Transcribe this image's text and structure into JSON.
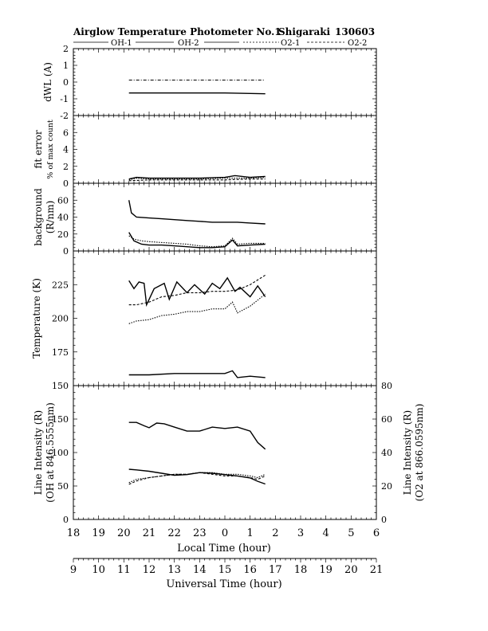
{
  "chart_data": {
    "type": "line",
    "title": "Airglow Temperature Photometer No.1",
    "site": "Shigaraki",
    "date_code": "130603",
    "legend": [
      "OH-1",
      "OH-2",
      "O2-1",
      "O2-2"
    ],
    "x_local": {
      "label": "Local Time (hour)",
      "range": [
        18,
        30
      ],
      "ticks": [
        "18",
        "19",
        "20",
        "21",
        "22",
        "23",
        "0",
        "1",
        "2",
        "3",
        "4",
        "5",
        "6"
      ]
    },
    "x_ut": {
      "label": "Universal Time (hour)",
      "range": [
        9,
        21
      ],
      "ticks": [
        "9",
        "10",
        "11",
        "12",
        "13",
        "14",
        "15",
        "16",
        "17",
        "18",
        "19",
        "20",
        "21"
      ]
    },
    "panels": [
      {
        "id": "dwl",
        "ylabel": "dWL (A)",
        "ylim": [
          -2,
          2
        ],
        "yticks": [
          "2",
          "1",
          "0",
          "-1",
          "-2"
        ],
        "series": [
          {
            "name": "OH-1",
            "style": "solid",
            "x": [
              20.2,
              21,
              22,
              23,
              24,
              25,
              25.6
            ],
            "y": [
              -0.65,
              -0.65,
              -0.65,
              -0.65,
              -0.65,
              -0.68,
              -0.7
            ]
          },
          {
            "name": "OH-2",
            "style": "dashdot",
            "x": [
              20.2,
              21,
              22,
              23,
              24,
              25,
              25.6
            ],
            "y": [
              0.12,
              0.12,
              0.12,
              0.12,
              0.12,
              0.12,
              0.12
            ]
          }
        ]
      },
      {
        "id": "fiterr",
        "ylabel": "fit error",
        "ylabel2": "% of max count",
        "ylim": [
          0,
          8
        ],
        "yticks": [
          "6",
          "4",
          "2",
          "0"
        ],
        "series": [
          {
            "name": "OH-1",
            "style": "solid",
            "x": [
              20.2,
              20.5,
              21,
              22,
              23,
              24,
              24.4,
              25,
              25.6
            ],
            "y": [
              0.5,
              0.7,
              0.6,
              0.6,
              0.6,
              0.7,
              0.9,
              0.7,
              0.8
            ]
          },
          {
            "name": "OH-2",
            "style": "dotted",
            "x": [
              20.2,
              20.5,
              21,
              22,
              23,
              24,
              25,
              25.6
            ],
            "y": [
              0.4,
              0.6,
              0.5,
              0.5,
              0.5,
              0.6,
              0.6,
              0.7
            ]
          },
          {
            "name": "O2-1",
            "style": "dashed",
            "x": [
              20.2,
              21,
              22,
              23,
              24,
              25,
              25.6
            ],
            "y": [
              0.3,
              0.4,
              0.4,
              0.4,
              0.4,
              0.5,
              0.5
            ]
          }
        ]
      },
      {
        "id": "background",
        "ylabel": "background",
        "ylabel2": "(R/nm)",
        "ylim": [
          0,
          80
        ],
        "yticks": [
          "60",
          "40",
          "20",
          "0"
        ],
        "series": [
          {
            "name": "OH-1",
            "style": "solid",
            "x": [
              20.2,
              20.3,
              20.5,
              21,
              21.5,
              22,
              22.5,
              23,
              23.5,
              24,
              24.5,
              25,
              25.6
            ],
            "y": [
              60,
              45,
              40,
              39,
              38,
              37,
              36,
              35,
              34,
              34,
              34,
              33,
              32
            ]
          },
          {
            "name": "OH-2",
            "style": "solid",
            "x": [
              20.2,
              20.4,
              20.7,
              21,
              21.5,
              22,
              22.5,
              23,
              23.5,
              24,
              24.3,
              24.5,
              25,
              25.6
            ],
            "y": [
              22,
              12,
              8,
              7,
              7,
              6,
              5,
              4,
              4,
              5,
              13,
              6,
              7,
              8
            ]
          },
          {
            "name": "O2-1",
            "style": "dotted",
            "x": [
              20.2,
              20.4,
              20.7,
              21,
              21.5,
              22,
              22.5,
              23,
              23.5,
              24,
              24.3,
              24.5,
              25,
              25.6
            ],
            "y": [
              18,
              14,
              12,
              11,
              10,
              9,
              8,
              6,
              5,
              6,
              15,
              8,
              9,
              9
            ]
          }
        ]
      },
      {
        "id": "temperature",
        "ylabel": "Temperature (K)",
        "ylim": [
          150,
          250
        ],
        "yticks": [
          "225",
          "200",
          "175",
          "150"
        ],
        "series": [
          {
            "name": "OH-1",
            "style": "solid",
            "x": [
              20.2,
              20.4,
              20.6,
              20.8,
              20.9,
              21.2,
              21.6,
              21.8,
              22.1,
              22.5,
              22.8,
              23.2,
              23.5,
              23.8,
              24.1,
              24.4,
              24.6,
              25,
              25.3,
              25.6
            ],
            "y": [
              228,
              222,
              227,
              226,
              210,
              222,
              226,
              214,
              227,
              219,
              225,
              218,
              226,
              222,
              230,
              220,
              223,
              216,
              224,
              216
            ]
          },
          {
            "name": "OH-2",
            "style": "solid",
            "x": [
              20.2,
              21,
              22,
              23,
              24,
              24.3,
              24.5,
              25,
              25.6
            ],
            "y": [
              158,
              158,
              159,
              159,
              159,
              161,
              156,
              157,
              156
            ]
          },
          {
            "name": "O2-1",
            "style": "dotted",
            "x": [
              20.2,
              20.5,
              21,
              21.5,
              22,
              22.5,
              23,
              23.5,
              24,
              24.3,
              24.5,
              25,
              25.6
            ],
            "y": [
              196,
              198,
              199,
              202,
              203,
              205,
              205,
              207,
              207,
              212,
              204,
              209,
              218
            ]
          },
          {
            "name": "O2-2",
            "style": "dashed",
            "x": [
              20.2,
              20.5,
              21,
              21.5,
              22,
              22.5,
              23,
              23.5,
              24,
              24.5,
              25,
              25.6
            ],
            "y": [
              210,
              210,
              212,
              216,
              217,
              219,
              219,
              220,
              220,
              221,
              225,
              232
            ]
          }
        ]
      },
      {
        "id": "intensity",
        "ylabel": "Line Intensity (R)",
        "ylabel2": "(OH at 846.5555nm)",
        "ylim": [
          0,
          200
        ],
        "yticks": [
          "150",
          "100",
          "50",
          "0"
        ],
        "ylabel_right": "Line Intensity (R)",
        "ylabel_right2": "(O2 at 866.0595nm)",
        "ylim_right": [
          0,
          80
        ],
        "yticks_right": [
          "80",
          "60",
          "40",
          "20",
          "0"
        ],
        "series": [
          {
            "name": "OH-1",
            "style": "solid",
            "axis": "left",
            "x": [
              20.2,
              20.5,
              20.8,
              21,
              21.3,
              21.6,
              22,
              22.5,
              23,
              23.5,
              24,
              24.5,
              25,
              25.3,
              25.6
            ],
            "y": [
              145,
              145,
              140,
              137,
              144,
              143,
              138,
              132,
              132,
              138,
              136,
              138,
              132,
              115,
              105
            ]
          },
          {
            "name": "OH-2",
            "style": "solid",
            "axis": "left",
            "x": [
              20.2,
              20.5,
              21,
              21.5,
              22,
              22.5,
              23,
              23.5,
              24,
              24.5,
              25,
              25.3,
              25.6
            ],
            "y": [
              75,
              74,
              72,
              69,
              66,
              67,
              70,
              69,
              67,
              65,
              62,
              57,
              53
            ]
          },
          {
            "name": "O2-1",
            "style": "dotted",
            "axis": "right",
            "x": [
              20.2,
              20.5,
              21,
              21.5,
              22,
              22.5,
              23,
              23.5,
              24,
              24.5,
              25,
              25.3,
              25.6
            ],
            "y": [
              22,
              24,
              25,
              26,
              27,
              27,
              28,
              28,
              27,
              27,
              26,
              25,
              27
            ]
          },
          {
            "name": "O2-2",
            "style": "dashed",
            "axis": "right",
            "x": [
              20.2,
              20.5,
              21,
              21.5,
              22,
              22.5,
              23,
              23.5,
              24,
              24.5,
              25,
              25.3,
              25.6
            ],
            "y": [
              21,
              23,
              25,
              26,
              27,
              27,
              28,
              27,
              26,
              26,
              25,
              24,
              26
            ]
          }
        ]
      }
    ]
  }
}
